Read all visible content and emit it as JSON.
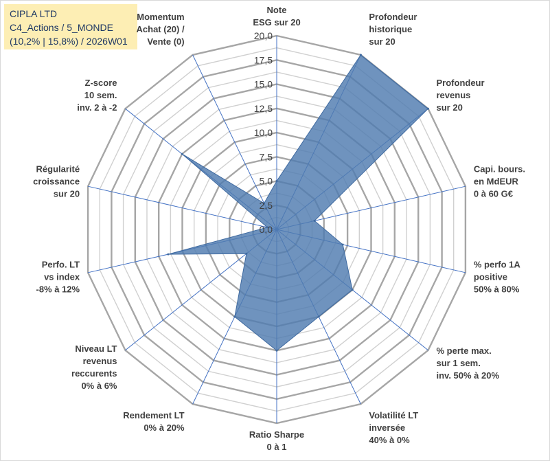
{
  "header": {
    "line1": "CIPLA LTD",
    "line2": "C4_Actions / 5_MONDE",
    "line3": "(10,2% | 15,8%) / 2026W01"
  },
  "colors": {
    "area": "#4f7bb0",
    "grid": "#bfbfbf",
    "spoke": "#4472c4",
    "title_bg": "#fdeeb4"
  },
  "chart_data": {
    "type": "radar",
    "r_range": [
      0,
      20
    ],
    "ticks": [
      "0,0",
      "2,5",
      "5,0",
      "7,5",
      "10,0",
      "12,5",
      "15,0",
      "17,5",
      "20,0"
    ],
    "grid": true,
    "categories": [
      [
        "Note",
        "ESG sur 20"
      ],
      [
        "Profondeur",
        "historique",
        "sur 20"
      ],
      [
        "Profondeur",
        "revenus",
        "sur 20"
      ],
      [
        "Capi. bours.",
        "en MdEUR",
        "0 à 60 G€"
      ],
      [
        "% perfo 1A",
        "positive",
        "50% à 80%"
      ],
      [
        "% perte max.",
        "sur 1 sem.",
        "inv. 50% à 20%"
      ],
      [
        "Volatilité LT",
        "inversée",
        "40% à 0%"
      ],
      [
        "Ratio Sharpe",
        "0 à 1"
      ],
      [
        "Rendement LT",
        "0% à 20%"
      ],
      [
        "Niveau LT",
        "revenus",
        "reccurents",
        "0% à 6%"
      ],
      [
        "Perfo. LT",
        "vs index",
        "-8% à 12%"
      ],
      [
        "Régularité",
        "croissance",
        "sur 20"
      ],
      [
        "Z-score",
        "10 sem.",
        "inv. 2 à -2"
      ],
      [
        "Momentum",
        "Achat (20) /",
        "Vente (0)"
      ]
    ],
    "values": [
      5,
      20,
      20,
      4,
      7,
      10,
      10,
      12.5,
      10,
      4,
      11.5,
      1,
      12.5,
      3
    ]
  }
}
